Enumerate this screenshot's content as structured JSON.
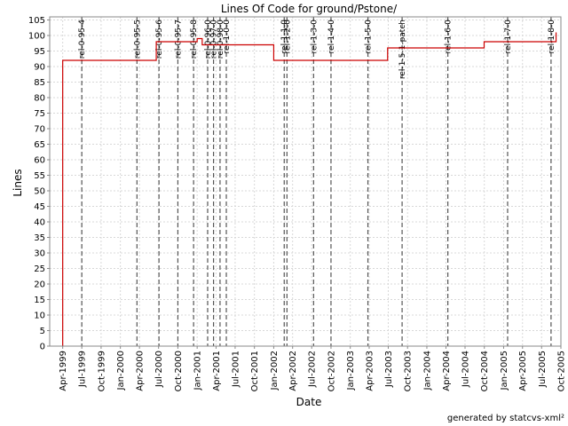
{
  "chart_data": {
    "type": "line",
    "title": "Lines Of Code for ground/Pstone/",
    "xlabel": "Date",
    "ylabel": "Lines",
    "footer": "generated by statcvs-xml²",
    "xlim": [
      "1999-01-29",
      "2005-10-01"
    ],
    "ylim": [
      0,
      106
    ],
    "grid": true,
    "line_color": "#cc0000",
    "y_ticks": [
      0,
      5,
      10,
      15,
      20,
      25,
      30,
      35,
      40,
      45,
      50,
      55,
      60,
      65,
      70,
      75,
      80,
      85,
      90,
      95,
      100,
      105
    ],
    "x_ticks": [
      {
        "date": "1999-04-01",
        "label": "Apr-1999"
      },
      {
        "date": "1999-07-01",
        "label": "Jul-1999"
      },
      {
        "date": "1999-10-01",
        "label": "Oct-1999"
      },
      {
        "date": "2000-01-01",
        "label": "Jan-2000"
      },
      {
        "date": "2000-04-01",
        "label": "Apr-2000"
      },
      {
        "date": "2000-07-01",
        "label": "Jul-2000"
      },
      {
        "date": "2000-10-01",
        "label": "Oct-2000"
      },
      {
        "date": "2001-01-01",
        "label": "Jan-2001"
      },
      {
        "date": "2001-04-01",
        "label": "Apr-2001"
      },
      {
        "date": "2001-07-01",
        "label": "Jul-2001"
      },
      {
        "date": "2001-10-01",
        "label": "Oct-2001"
      },
      {
        "date": "2002-01-01",
        "label": "Jan-2002"
      },
      {
        "date": "2002-04-01",
        "label": "Apr-2002"
      },
      {
        "date": "2002-07-01",
        "label": "Jul-2002"
      },
      {
        "date": "2002-10-01",
        "label": "Oct-2002"
      },
      {
        "date": "2003-01-01",
        "label": "Jan-2003"
      },
      {
        "date": "2003-04-01",
        "label": "Apr-2003"
      },
      {
        "date": "2003-07-01",
        "label": "Jul-2003"
      },
      {
        "date": "2003-10-01",
        "label": "Oct-2003"
      },
      {
        "date": "2004-01-01",
        "label": "Jan-2004"
      },
      {
        "date": "2004-04-01",
        "label": "Apr-2004"
      },
      {
        "date": "2004-07-01",
        "label": "Jul-2004"
      },
      {
        "date": "2004-10-01",
        "label": "Oct-2004"
      },
      {
        "date": "2005-01-01",
        "label": "Jan-2005"
      },
      {
        "date": "2005-04-01",
        "label": "Apr-2005"
      },
      {
        "date": "2005-07-01",
        "label": "Jul-2005"
      },
      {
        "date": "2005-10-01",
        "label": "Oct-2005"
      }
    ],
    "series": [
      {
        "style": "step",
        "points": [
          {
            "x": "1999-04-01",
            "y": 0
          },
          {
            "x": "1999-04-01",
            "y": 92
          },
          {
            "x": "2000-06-20",
            "y": 98
          },
          {
            "x": "2001-01-01",
            "y": 99
          },
          {
            "x": "2001-01-25",
            "y": 97
          },
          {
            "x": "2002-01-01",
            "y": 92
          },
          {
            "x": "2003-06-28",
            "y": 96
          },
          {
            "x": "2004-09-30",
            "y": 98
          },
          {
            "x": "2005-09-08",
            "y": 101
          }
        ]
      }
    ],
    "releases": [
      {
        "label": "rel-0-95-4",
        "date": "1999-07-01"
      },
      {
        "label": "rel-0-95-5",
        "date": "2000-03-20"
      },
      {
        "label": "rel-0-95-6",
        "date": "2000-07-03"
      },
      {
        "label": "rel-0-95-7",
        "date": "2000-10-01"
      },
      {
        "label": "rel-0-95-8",
        "date": "2000-12-15"
      },
      {
        "label": "rel-0-96-0",
        "date": "2001-02-20"
      },
      {
        "label": "rel-0-97-0",
        "date": "2001-03-20"
      },
      {
        "label": "rel-0-98-0",
        "date": "2001-04-20"
      },
      {
        "label": "rel-1-0-0",
        "date": "2001-05-20"
      },
      {
        "label": "rel-1-1-0",
        "date": "2002-02-20"
      },
      {
        "label": "rel-1-2-0",
        "date": "2002-03-05"
      },
      {
        "label": "rel-1-3-0",
        "date": "2002-07-10"
      },
      {
        "label": "rel-1-4-0",
        "date": "2002-10-01"
      },
      {
        "label": "rel-1-5-0",
        "date": "2003-03-26"
      },
      {
        "label": "rel-1-5-1-patch",
        "date": "2003-09-05"
      },
      {
        "label": "rel-1-6-0",
        "date": "2004-04-10"
      },
      {
        "label": "rel-1-7-0",
        "date": "2005-01-20"
      },
      {
        "label": "rel-1-8-0",
        "date": "2005-08-15"
      }
    ]
  }
}
